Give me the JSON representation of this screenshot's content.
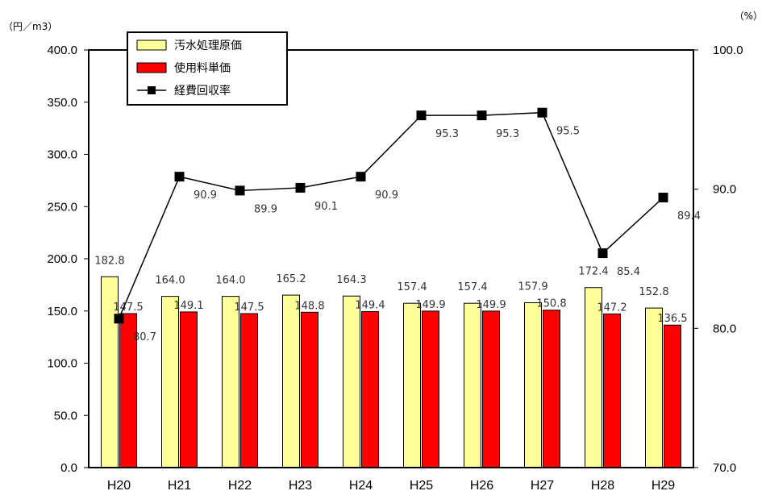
{
  "chart_data": {
    "type": "bar",
    "categories": [
      "H20",
      "H21",
      "H22",
      "H23",
      "H24",
      "H25",
      "H26",
      "H27",
      "H28",
      "H29"
    ],
    "series": [
      {
        "name": "汚水処理原価",
        "type": "bar",
        "axis": "left",
        "color": "#ffff99",
        "values": [
          182.8,
          164.0,
          164.0,
          165.2,
          164.3,
          157.4,
          157.4,
          157.9,
          172.4,
          152.8
        ],
        "labels": [
          "182.8",
          "164.0",
          "164.0",
          "165.2",
          "164.3",
          "157.4",
          "157.4",
          "157.9",
          "172.4",
          "152.8"
        ]
      },
      {
        "name": "使用料単価",
        "type": "bar",
        "axis": "left",
        "color": "#ff0000",
        "values": [
          147.5,
          149.1,
          147.5,
          148.8,
          149.4,
          149.9,
          149.9,
          150.8,
          147.2,
          136.5
        ],
        "labels": [
          "147.5",
          "149.1",
          "147.5",
          "148.8",
          "149.4",
          "149.9",
          "149.9",
          "150.8",
          "147.2",
          "136.5"
        ]
      },
      {
        "name": "経費回収率",
        "type": "line",
        "axis": "right",
        "color": "#000000",
        "values": [
          80.7,
          90.9,
          89.9,
          90.1,
          90.9,
          95.3,
          95.3,
          95.5,
          85.4,
          89.4
        ],
        "labels": [
          "80.7",
          "90.9",
          "89.9",
          "90.1",
          "90.9",
          "95.3",
          "95.3",
          "95.5",
          "85.4",
          "89.4"
        ]
      }
    ],
    "y_left": {
      "unit": "（円／m3）",
      "ylim": [
        0,
        400
      ],
      "ticks": [
        "0.0",
        "50.0",
        "100.0",
        "150.0",
        "200.0",
        "250.0",
        "300.0",
        "350.0",
        "400.0"
      ]
    },
    "y_right": {
      "unit": "（%）",
      "ylim": [
        70,
        100
      ],
      "ticks": [
        "70.0",
        "80.0",
        "90.0",
        "100.0"
      ]
    },
    "grid": false,
    "legend": {
      "position": "top-left-inside"
    }
  }
}
